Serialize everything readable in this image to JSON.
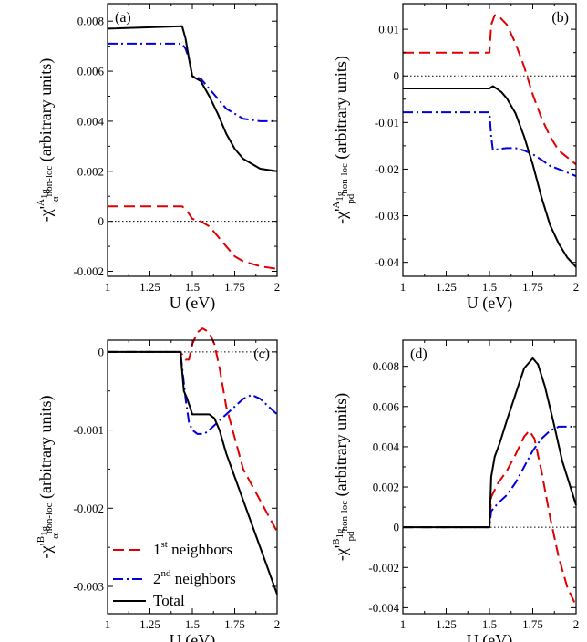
{
  "chart_data": [
    {
      "panel": "(a)",
      "type": "line",
      "xlabel": "U (eV)",
      "ylabel": {
        "prefix": "-χ'",
        "sup": "A",
        "supsub": "1g",
        "sub": "α",
        "subsup": "non-loc",
        "suffix": "(arbitrary units)"
      },
      "xlim": [
        1,
        2
      ],
      "ylim": [
        -0.0022,
        0.0087
      ],
      "xticks": [
        "1",
        "1.25",
        "1.5",
        "1.75",
        "2"
      ],
      "xtick_values": [
        1,
        1.25,
        1.5,
        1.75,
        2
      ],
      "yticks": [
        "-0.002",
        "0",
        "0.002",
        "0.004",
        "0.006",
        "0.008"
      ],
      "ytick_values": [
        -0.002,
        0,
        0.002,
        0.004,
        0.006,
        0.008
      ],
      "zero_line": true,
      "series": [
        {
          "style": "dashed",
          "color": "#e00000",
          "x": [
            1,
            1.44,
            1.47,
            1.5,
            1.55,
            1.6,
            1.65,
            1.7,
            1.75,
            1.8,
            1.9,
            2
          ],
          "y": [
            0.0006,
            0.0006,
            0.0004,
            0.0001,
            0.0,
            -0.0002,
            -0.0006,
            -0.001,
            -0.0014,
            -0.0016,
            -0.0018,
            -0.0019
          ]
        },
        {
          "style": "dashdot",
          "color": "#0000e0",
          "x": [
            1,
            1.44,
            1.46,
            1.48,
            1.5,
            1.55,
            1.6,
            1.65,
            1.7,
            1.75,
            1.8,
            1.9,
            2
          ],
          "y": [
            0.0071,
            0.0071,
            0.0069,
            0.0065,
            0.0058,
            0.0057,
            0.0053,
            0.0049,
            0.0045,
            0.0043,
            0.0041,
            0.004,
            0.004
          ]
        },
        {
          "style": "solid",
          "color": "#000000",
          "x": [
            1,
            1.44,
            1.46,
            1.48,
            1.5,
            1.55,
            1.6,
            1.65,
            1.7,
            1.75,
            1.8,
            1.9,
            2
          ],
          "y": [
            0.0077,
            0.0078,
            0.0073,
            0.0065,
            0.0058,
            0.0056,
            0.005,
            0.0043,
            0.0035,
            0.0029,
            0.0025,
            0.0021,
            0.002
          ]
        }
      ]
    },
    {
      "panel": "(b)",
      "type": "line",
      "xlabel": "U (eV)",
      "ylabel": {
        "prefix": "-χ'",
        "sup": "A",
        "supsub": "1g",
        "sub": "pd",
        "subsup": "non-loc",
        "suffix": "(arbitrary units)"
      },
      "xlim": [
        1,
        2
      ],
      "ylim": [
        -0.043,
        0.0155
      ],
      "xticks": [
        "1",
        "1.25",
        "1.5",
        "1.75",
        "2"
      ],
      "xtick_values": [
        1,
        1.25,
        1.5,
        1.75,
        2
      ],
      "yticks": [
        "-0.04",
        "-0.03",
        "-0.02",
        "-0.01",
        "0",
        "0.01"
      ],
      "ytick_values": [
        -0.04,
        -0.03,
        -0.02,
        -0.01,
        0,
        0.01
      ],
      "zero_line": true,
      "series": [
        {
          "style": "dashed",
          "color": "#e00000",
          "x": [
            1,
            1.5,
            1.51,
            1.53,
            1.55,
            1.6,
            1.65,
            1.7,
            1.75,
            1.8,
            1.85,
            1.9,
            2
          ],
          "y": [
            0.005,
            0.005,
            0.011,
            0.013,
            0.013,
            0.011,
            0.007,
            0.002,
            -0.004,
            -0.009,
            -0.013,
            -0.016,
            -0.019
          ]
        },
        {
          "style": "dashdot",
          "color": "#0000e0",
          "x": [
            1,
            1.5,
            1.51,
            1.52,
            1.55,
            1.6,
            1.65,
            1.7,
            1.75,
            1.8,
            1.85,
            1.9,
            2
          ],
          "y": [
            -0.0078,
            -0.0078,
            -0.013,
            -0.016,
            -0.0157,
            -0.0155,
            -0.0155,
            -0.016,
            -0.0168,
            -0.018,
            -0.0193,
            -0.02,
            -0.0215
          ]
        },
        {
          "style": "solid",
          "color": "#000000",
          "x": [
            1,
            1.5,
            1.52,
            1.54,
            1.57,
            1.6,
            1.65,
            1.7,
            1.75,
            1.8,
            1.85,
            1.9,
            1.95,
            2
          ],
          "y": [
            -0.0027,
            -0.0027,
            -0.0022,
            -0.0027,
            -0.0035,
            -0.0048,
            -0.008,
            -0.013,
            -0.019,
            -0.026,
            -0.032,
            -0.036,
            -0.039,
            -0.041
          ]
        }
      ]
    },
    {
      "panel": "(c)",
      "type": "line",
      "xlabel": "U (eV)",
      "ylabel": {
        "prefix": "-χ'",
        "sup": "B",
        "supsub": "1g",
        "sub": "α",
        "subsup": "non-loc",
        "suffix": "(arbitrary units)"
      },
      "xlim": [
        1,
        2
      ],
      "ylim": [
        -0.00335,
        0.00015
      ],
      "xticks": [
        "1",
        "1.25",
        "1.5",
        "1.75",
        "2"
      ],
      "xtick_values": [
        1,
        1.25,
        1.5,
        1.75,
        2
      ],
      "yticks": [
        "-0.003",
        "-0.002",
        "-0.001",
        "0"
      ],
      "ytick_values": [
        -0.003,
        -0.002,
        -0.001,
        0
      ],
      "zero_line": true,
      "legend": {
        "placement": "bottom-left",
        "entries": [
          {
            "base": "1",
            "sup": "st",
            "rest": " neighbors",
            "style": "dashed",
            "color": "#e00000"
          },
          {
            "base": "2",
            "sup": "nd",
            "rest": " neighbors",
            "style": "dashdot",
            "color": "#0000e0"
          },
          {
            "base": "Total",
            "sup": "",
            "rest": "",
            "style": "solid",
            "color": "#000000"
          }
        ]
      },
      "series": [
        {
          "style": "dashed",
          "color": "#e00000",
          "x": [
            1,
            1.43,
            1.46,
            1.48,
            1.5,
            1.53,
            1.56,
            1.6,
            1.63,
            1.66,
            1.7,
            1.75,
            1.8,
            1.9,
            2
          ],
          "y": [
            0,
            0,
            -0.0001,
            -0.0001,
            0.0001,
            0.00025,
            0.0003,
            0.00025,
            0.0001,
            -0.0002,
            -0.0007,
            -0.0011,
            -0.0015,
            -0.0019,
            -0.0023
          ]
        },
        {
          "style": "dashdot",
          "color": "#0000e0",
          "x": [
            1,
            1.43,
            1.46,
            1.48,
            1.5,
            1.53,
            1.57,
            1.6,
            1.65,
            1.7,
            1.75,
            1.8,
            1.85,
            1.9,
            2
          ],
          "y": [
            0,
            0,
            -0.0006,
            -0.0009,
            -0.001,
            -0.00105,
            -0.00105,
            -0.001,
            -0.0009,
            -0.0008,
            -0.0007,
            -0.0006,
            -0.00055,
            -0.0006,
            -0.0008
          ]
        },
        {
          "style": "solid",
          "color": "#000000",
          "x": [
            1,
            1.43,
            1.45,
            1.47,
            1.5,
            1.55,
            1.6,
            1.63,
            1.66,
            1.7,
            1.75,
            1.8,
            1.85,
            1.9,
            2
          ],
          "y": [
            0,
            0,
            -0.0005,
            -0.0006,
            -0.0008,
            -0.0008,
            -0.0008,
            -0.00085,
            -0.001,
            -0.0013,
            -0.0016,
            -0.0019,
            -0.0022,
            -0.0025,
            -0.0031
          ]
        }
      ]
    },
    {
      "panel": "(d)",
      "type": "line",
      "xlabel": "U (eV)",
      "ylabel": {
        "prefix": "-χ'",
        "sup": "B",
        "supsub": "1g",
        "sub": "pd",
        "subsup": "non-loc",
        "suffix": "(arbitrary units)"
      },
      "xlim": [
        1,
        2
      ],
      "ylim": [
        -0.0043,
        0.0093
      ],
      "xticks": [
        "1",
        "1.25",
        "1.5",
        "1.75",
        "2"
      ],
      "xtick_values": [
        1,
        1.25,
        1.5,
        1.75,
        2
      ],
      "yticks": [
        "-0.004",
        "-0.002",
        "0",
        "0.002",
        "0.004",
        "0.006",
        "0.008"
      ],
      "ytick_values": [
        -0.004,
        -0.002,
        0,
        0.002,
        0.004,
        0.006,
        0.008
      ],
      "zero_line": true,
      "series": [
        {
          "style": "dashed",
          "color": "#e00000",
          "x": [
            1,
            1.5,
            1.51,
            1.55,
            1.6,
            1.65,
            1.7,
            1.73,
            1.76,
            1.8,
            1.85,
            1.9,
            1.95,
            2
          ],
          "y": [
            0,
            0,
            0.0015,
            0.0022,
            0.0028,
            0.0036,
            0.0045,
            0.0048,
            0.0044,
            0.0028,
            0.0005,
            -0.0015,
            -0.003,
            -0.0039
          ]
        },
        {
          "style": "dashdot",
          "color": "#0000e0",
          "x": [
            1,
            1.5,
            1.51,
            1.55,
            1.6,
            1.65,
            1.7,
            1.75,
            1.8,
            1.85,
            1.9,
            1.95,
            2
          ],
          "y": [
            0,
            0,
            0.0008,
            0.0012,
            0.0016,
            0.0022,
            0.003,
            0.0038,
            0.0044,
            0.0048,
            0.005,
            0.005,
            0.005
          ]
        },
        {
          "style": "solid",
          "color": "#000000",
          "x": [
            1,
            1.5,
            1.51,
            1.53,
            1.56,
            1.6,
            1.65,
            1.7,
            1.75,
            1.78,
            1.82,
            1.87,
            1.92,
            1.96,
            2
          ],
          "y": [
            0,
            0,
            0.0025,
            0.0035,
            0.0042,
            0.0053,
            0.0066,
            0.0079,
            0.0084,
            0.0081,
            0.007,
            0.0052,
            0.0033,
            0.0022,
            0.0011
          ]
        }
      ]
    }
  ]
}
